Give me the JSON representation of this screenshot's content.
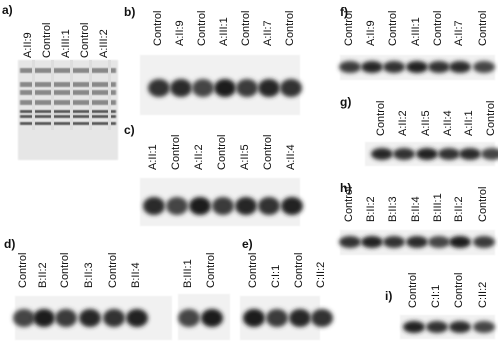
{
  "panels": [
    {
      "label": "a)",
      "lanes": [
        "A:II:9",
        "Control",
        "A:III:1",
        "Control",
        "A:III:2"
      ]
    },
    {
      "label": "b)",
      "lanes": [
        "Control",
        "A:II:9",
        "Control",
        "A:III:1",
        "Control",
        "A:II:7",
        "Control"
      ]
    },
    {
      "label": "c)",
      "lanes": [
        "A:II:1",
        "Control",
        "A:II:2",
        "Control",
        "A:II:5",
        "Control",
        "A:II:4"
      ]
    },
    {
      "label": "d)",
      "lanes": [
        "Control",
        "B:II:2",
        "Control",
        "B:II:3",
        "Control",
        "B:II:4",
        "B:III:1",
        "Control"
      ]
    },
    {
      "label": "e)",
      "lanes": [
        "Control",
        "C:I:1",
        "Control",
        "C:II:2"
      ]
    },
    {
      "label": "f)",
      "lanes": [
        "Control",
        "A:II:9",
        "Control",
        "A:III:1",
        "Control",
        "A:II:7",
        "Control"
      ]
    },
    {
      "label": "g)",
      "lanes": [
        "Control",
        "A:II:2",
        "A:II:5",
        "A:II:4",
        "A:II:1",
        "Control"
      ]
    },
    {
      "label": "h)",
      "lanes": [
        "Control",
        "B:II:2",
        "B:II:3",
        "B:II:4",
        "B:III:1",
        "B:II:2",
        "Control"
      ]
    },
    {
      "label": "i)",
      "lanes": [
        "Control",
        "C:I:1",
        "Control",
        "C:II:2"
      ]
    }
  ]
}
